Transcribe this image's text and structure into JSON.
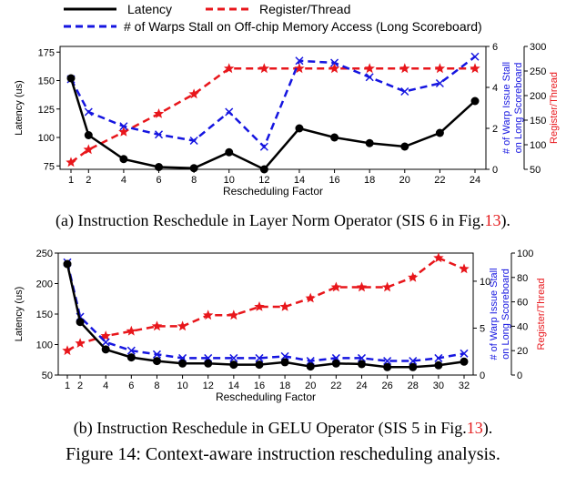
{
  "legend": {
    "latency": "Latency",
    "register": "Register/Thread",
    "warps": "# of Warps Stall on Off-chip Memory Access (Long Scoreboard)"
  },
  "colors": {
    "latency": "#000000",
    "register": "#e8161b",
    "warps": "#1515e0"
  },
  "chart_data": [
    {
      "type": "line",
      "xlabel": "Rescheduling Factor",
      "ylabel": "Latency (us)",
      "y2label": [
        "# of Warp Issue Stall",
        "on Long Scoreboard"
      ],
      "y3label": "Register/Thread",
      "x": [
        1,
        2,
        4,
        6,
        8,
        10,
        12,
        14,
        16,
        18,
        20,
        22,
        24
      ],
      "xticks": [
        "1",
        "2",
        "4",
        "6",
        "8",
        "10",
        "12",
        "14",
        "16",
        "18",
        "20",
        "22",
        "24"
      ],
      "ylim": [
        72,
        180
      ],
      "yticks": [
        75,
        100,
        125,
        150,
        175
      ],
      "y2lim": [
        0,
        6
      ],
      "y2ticks": [
        0,
        2,
        4,
        6
      ],
      "y3lim": [
        50,
        300
      ],
      "y3ticks": [
        50,
        100,
        150,
        200,
        250,
        300
      ],
      "series": [
        {
          "name": "Latency",
          "axis": "left",
          "marker": "circle",
          "values": [
            152,
            102,
            81,
            74,
            73,
            87,
            72,
            108,
            100,
            95,
            92,
            104,
            132
          ]
        },
        {
          "name": "Register/Thread",
          "axis": "right2",
          "marker": "star",
          "values": [
            64,
            90,
            126,
            163,
            203,
            255,
            255,
            255,
            255,
            255,
            255,
            255,
            255
          ]
        },
        {
          "name": "# of Warps Stall on Off-chip Memory Access (Long Scoreboard)",
          "axis": "right1",
          "marker": "x",
          "values": [
            4.4,
            2.8,
            2.1,
            1.7,
            1.4,
            2.8,
            1.1,
            5.3,
            5.2,
            4.5,
            3.8,
            4.2,
            5.5
          ]
        }
      ]
    },
    {
      "type": "line",
      "xlabel": "Rescheduling Factor",
      "ylabel": "Latency (us)",
      "y2label": [
        "# of Warp Issue Stall",
        "on Long Scoreboard"
      ],
      "y3label": "Register/Thread",
      "x": [
        1,
        2,
        4,
        6,
        8,
        10,
        12,
        14,
        16,
        18,
        20,
        22,
        24,
        26,
        28,
        30,
        32
      ],
      "xticks": [
        "1",
        "2",
        "4",
        "6",
        "8",
        "10",
        "12",
        "14",
        "16",
        "18",
        "20",
        "22",
        "24",
        "26",
        "28",
        "30",
        "32"
      ],
      "ylim": [
        50,
        250
      ],
      "yticks": [
        50,
        100,
        150,
        200,
        250
      ],
      "y2lim": [
        0,
        13
      ],
      "y2ticks": [
        0,
        5,
        10
      ],
      "y3lim": [
        0,
        100
      ],
      "y3ticks": [
        0,
        20,
        40,
        60,
        80,
        100
      ],
      "series": [
        {
          "name": "Latency",
          "axis": "left",
          "marker": "circle",
          "values": [
            232,
            137,
            92,
            79,
            73,
            69,
            69,
            67,
            67,
            71,
            64,
            69,
            68,
            63,
            63,
            66,
            72
          ]
        },
        {
          "name": "Register/Thread",
          "axis": "right2",
          "marker": "star",
          "values": [
            20,
            26,
            32,
            36,
            40,
            40,
            49,
            49,
            56,
            56,
            63,
            72,
            72,
            72,
            80,
            96,
            87
          ]
        },
        {
          "name": "# of Warps Stall on Off-chip Memory Access (Long Scoreboard)",
          "axis": "right1",
          "marker": "x",
          "values": [
            12,
            6.2,
            3.5,
            2.6,
            2.2,
            1.8,
            1.8,
            1.8,
            1.8,
            2.0,
            1.5,
            1.8,
            1.8,
            1.5,
            1.5,
            1.8,
            2.3
          ]
        }
      ]
    }
  ],
  "captions": {
    "a_text": "(a) Instruction Reschedule in Layer Norm Operator (SIS 6 in Fig.",
    "a_ref": "13",
    "a_end": ").",
    "b_text": "(b) Instruction Reschedule in GELU Operator (SIS 5 in Fig.",
    "b_ref": "13",
    "b_end": ").",
    "figure": "Figure 14: Context-aware instruction rescheduling analysis."
  }
}
